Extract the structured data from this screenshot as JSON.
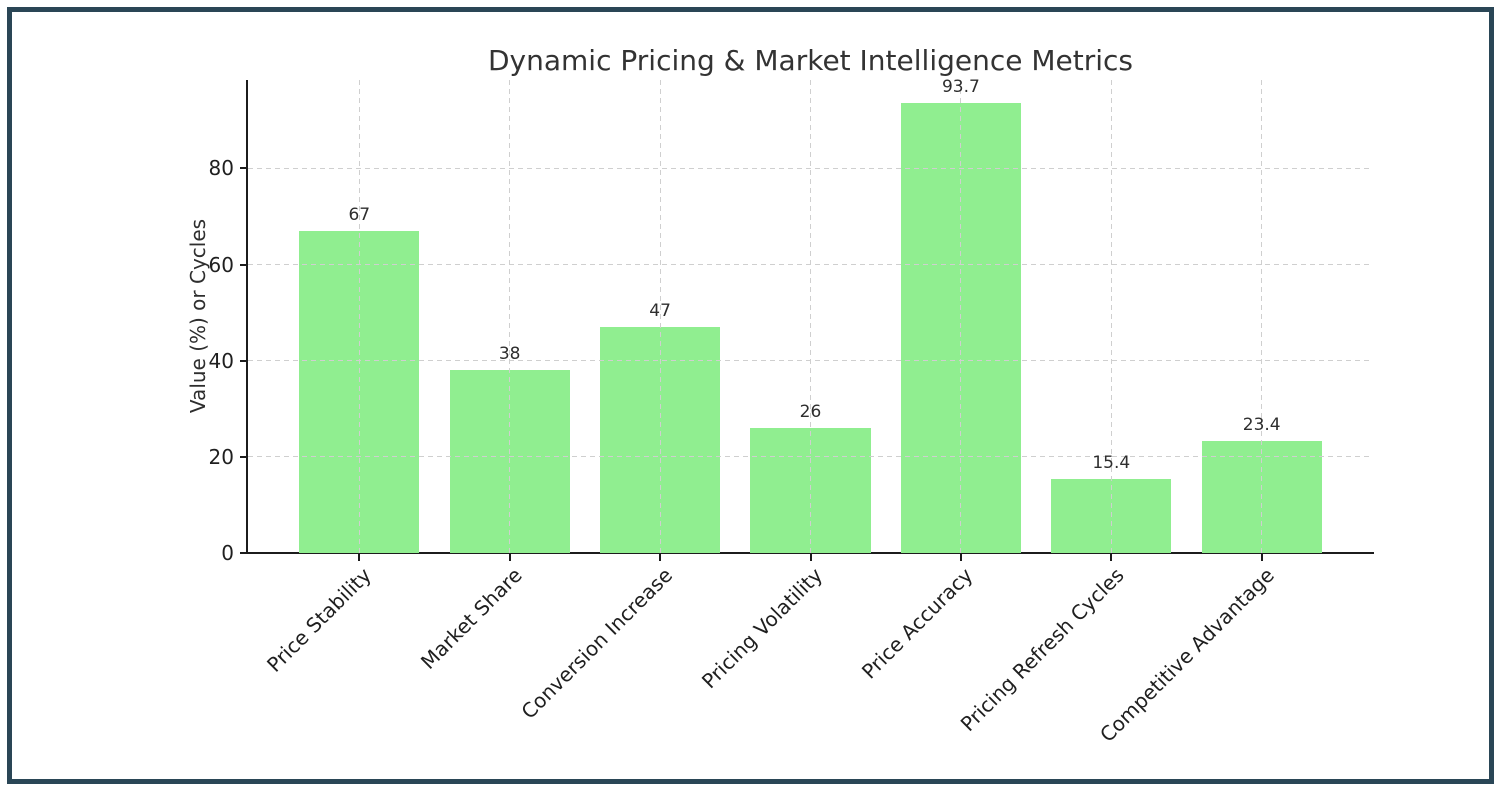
{
  "page": {
    "background": "#ffffff",
    "frame_border_color": "#2a4656"
  },
  "chart_data": {
    "type": "bar",
    "title": "Dynamic Pricing & Market Intelligence Metrics",
    "xlabel": "",
    "ylabel": "Value (%) or Cycles",
    "categories": [
      "Price Stability",
      "Market Share",
      "Conversion Increase",
      "Pricing Volatility",
      "Price Accuracy",
      "Pricing Refresh Cycles",
      "Competitive Advantage"
    ],
    "values": [
      67,
      38,
      47,
      26,
      93.7,
      15.4,
      23.4
    ],
    "value_labels": [
      "67",
      "38",
      "47",
      "26",
      "93.7",
      "15.4",
      "23.4"
    ],
    "yticks": [
      0,
      20,
      40,
      60,
      80
    ],
    "ylim": [
      0,
      98.4
    ],
    "bar_color": "#90EE90",
    "grid": true,
    "grid_style": "dashed",
    "grid_color": "#cfcfcf",
    "grid_above_bars": true,
    "axis_color": "#1c1c1c",
    "text_color": "#2e2e2e",
    "x_tick_rotation_deg": 45,
    "legend_position": "none"
  }
}
